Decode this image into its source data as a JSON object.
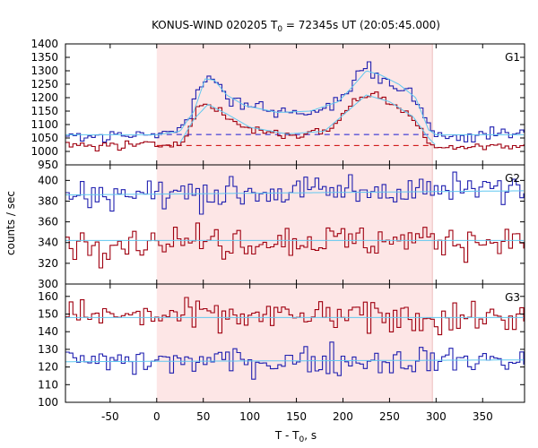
{
  "chart_data": {
    "type": "line",
    "title": "KONUS-WIND 020205 T",
    "title_sub": "0",
    "title_rest": " = 72345s UT (20:05:45.000)",
    "xlabel": "T - T",
    "xlabel_sub": "0",
    "xlabel_rest": ", s",
    "ylabel": "counts / sec",
    "xlim": [
      -98,
      395
    ],
    "xticks": [
      -50,
      0,
      50,
      100,
      150,
      200,
      250,
      300,
      350
    ],
    "shaded_interval": [
      0,
      296
    ],
    "bin_width": 4,
    "colors": {
      "blue": "#2020b0",
      "red": "#a00010",
      "fit": "#60c8f0",
      "shade": "#fde6e6",
      "dash_blue": "#1a1ad0",
      "dash_red": "#cc0000"
    },
    "panels": [
      {
        "name": "G1",
        "ylim": [
          950,
          1400
        ],
        "yticks": [
          950,
          1000,
          1050,
          1100,
          1150,
          1200,
          1250,
          1300,
          1350,
          1400
        ],
        "ytick_labels": [
          "950",
          "1000",
          "1050",
          "1100",
          "1150",
          "1200",
          "1250",
          "1300",
          "1350",
          "1400"
        ],
        "background_levels": [
          {
            "series": "blue",
            "value": 1063,
            "x_range": [
              0,
              296
            ]
          },
          {
            "series": "red",
            "value": 1022,
            "x_range": [
              0,
              296
            ]
          }
        ],
        "series": [
          {
            "color": "blue",
            "keypoints": [
              [
                -98,
                1062
              ],
              [
                0,
                1062
              ],
              [
                20,
                1068
              ],
              [
                35,
                1120
              ],
              [
                45,
                1230
              ],
              [
                55,
                1275
              ],
              [
                65,
                1255
              ],
              [
                80,
                1195
              ],
              [
                100,
                1170
              ],
              [
                130,
                1145
              ],
              [
                160,
                1150
              ],
              [
                185,
                1170
              ],
              [
                200,
                1200
              ],
              [
                215,
                1275
              ],
              [
                228,
                1315
              ],
              [
                240,
                1270
              ],
              [
                255,
                1245
              ],
              [
                268,
                1225
              ],
              [
                282,
                1170
              ],
              [
                296,
                1070
              ],
              [
                310,
                1060
              ],
              [
                395,
                1065
              ]
            ],
            "noise": 12
          },
          {
            "color": "red",
            "keypoints": [
              [
                -98,
                1022
              ],
              [
                0,
                1022
              ],
              [
                25,
                1035
              ],
              [
                38,
                1110
              ],
              [
                48,
                1180
              ],
              [
                58,
                1170
              ],
              [
                70,
                1140
              ],
              [
                90,
                1095
              ],
              [
                110,
                1080
              ],
              [
                140,
                1060
              ],
              [
                170,
                1070
              ],
              [
                190,
                1090
              ],
              [
                205,
                1160
              ],
              [
                218,
                1205
              ],
              [
                232,
                1215
              ],
              [
                245,
                1190
              ],
              [
                260,
                1165
              ],
              [
                275,
                1120
              ],
              [
                290,
                1050
              ],
              [
                300,
                1020
              ],
              [
                395,
                1018
              ]
            ],
            "noise": 9
          },
          {
            "color": "fit",
            "smooth": true,
            "keypoints": [
              [
                -98,
                1062
              ],
              [
                0,
                1062
              ],
              [
                25,
                1075
              ],
              [
                40,
                1150
              ],
              [
                52,
                1270
              ],
              [
                62,
                1265
              ],
              [
                75,
                1210
              ],
              [
                95,
                1170
              ],
              [
                130,
                1145
              ],
              [
                165,
                1150
              ],
              [
                195,
                1185
              ],
              [
                210,
                1240
              ],
              [
                225,
                1300
              ],
              [
                240,
                1285
              ],
              [
                260,
                1250
              ],
              [
                278,
                1200
              ],
              [
                292,
                1080
              ],
              [
                300,
                1062
              ],
              [
                395,
                1062
              ]
            ]
          },
          {
            "color": "fit",
            "smooth": true,
            "keypoints": [
              [
                25,
                1032
              ],
              [
                40,
                1120
              ],
              [
                55,
                1175
              ],
              [
                75,
                1140
              ],
              [
                100,
                1090
              ],
              [
                140,
                1065
              ],
              [
                180,
                1075
              ],
              [
                205,
                1150
              ],
              [
                225,
                1210
              ],
              [
                250,
                1185
              ],
              [
                275,
                1130
              ],
              [
                292,
                1050
              ],
              [
                300,
                1022
              ]
            ]
          }
        ]
      },
      {
        "name": "G2",
        "ylim": [
          300,
          415
        ],
        "yticks": [
          300,
          320,
          340,
          360,
          380,
          400
        ],
        "ytick_labels": [
          "300",
          "320",
          "340",
          "360",
          "380",
          "400"
        ],
        "series": [
          {
            "color": "blue",
            "keypoints": [
              [
                -98,
                386
              ],
              [
                395,
                392
              ]
            ],
            "noise": 7
          },
          {
            "color": "red",
            "keypoints": [
              [
                -98,
                341
              ],
              [
                395,
                343
              ]
            ],
            "noise": 8
          },
          {
            "color": "fit",
            "smooth": true,
            "keypoints": [
              [
                -98,
                386
              ],
              [
                395,
                390
              ]
            ]
          },
          {
            "color": "fit",
            "smooth": true,
            "keypoints": [
              [
                -98,
                342
              ],
              [
                395,
                342
              ]
            ]
          }
        ]
      },
      {
        "name": "G3",
        "ylim": [
          100,
          167
        ],
        "yticks": [
          100,
          110,
          120,
          130,
          140,
          150,
          160
        ],
        "ytick_labels": [
          "100",
          "110",
          "120",
          "130",
          "140",
          "150",
          "160"
        ],
        "series": [
          {
            "color": "red",
            "keypoints": [
              [
                -98,
                149
              ],
              [
                395,
                148
              ]
            ],
            "noise": 4.5
          },
          {
            "color": "blue",
            "keypoints": [
              [
                -98,
                123
              ],
              [
                395,
                124
              ]
            ],
            "noise": 4
          },
          {
            "color": "fit",
            "smooth": true,
            "keypoints": [
              [
                -98,
                148
              ],
              [
                395,
                148
              ]
            ]
          },
          {
            "color": "fit",
            "smooth": true,
            "keypoints": [
              [
                -98,
                123
              ],
              [
                395,
                124
              ]
            ]
          }
        ]
      }
    ]
  }
}
